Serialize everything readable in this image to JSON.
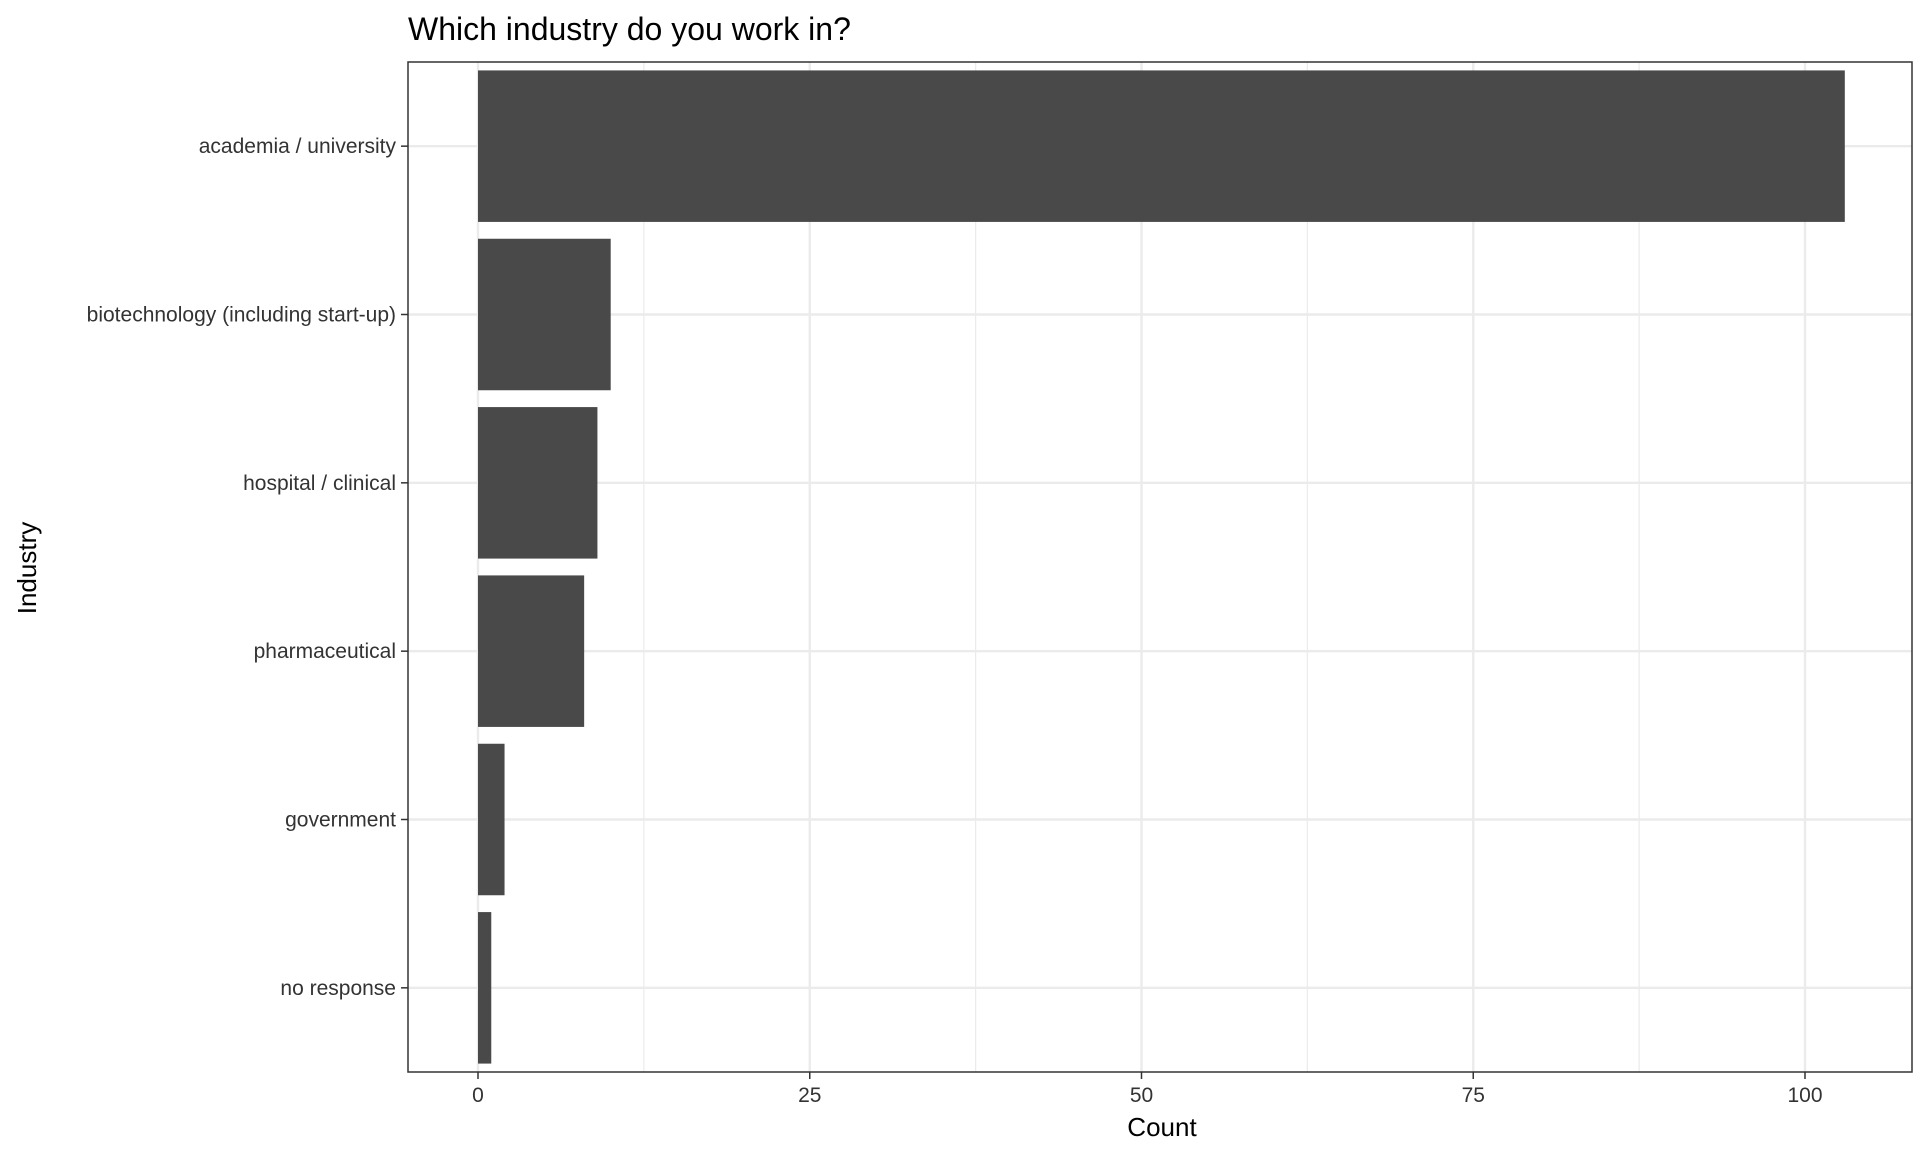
{
  "chart_data": {
    "type": "bar",
    "orientation": "horizontal",
    "title": "Which industry do you work in?",
    "xlabel": "Count",
    "ylabel": "Industry",
    "categories": [
      "academia / university",
      "biotechnology (including start-up)",
      "hospital / clinical",
      "pharmaceutical",
      "government",
      "no response"
    ],
    "values": [
      103,
      10,
      9,
      8,
      2,
      1
    ],
    "xlim": [
      0,
      108.3
    ],
    "x_ticks": [
      0,
      25,
      50,
      75,
      100
    ],
    "x_tick_labels": [
      "0",
      "25",
      "50",
      "75",
      "100"
    ],
    "grid": true,
    "bar_color": "#494949",
    "grid_color": "#ebebeb",
    "legend": "none"
  }
}
